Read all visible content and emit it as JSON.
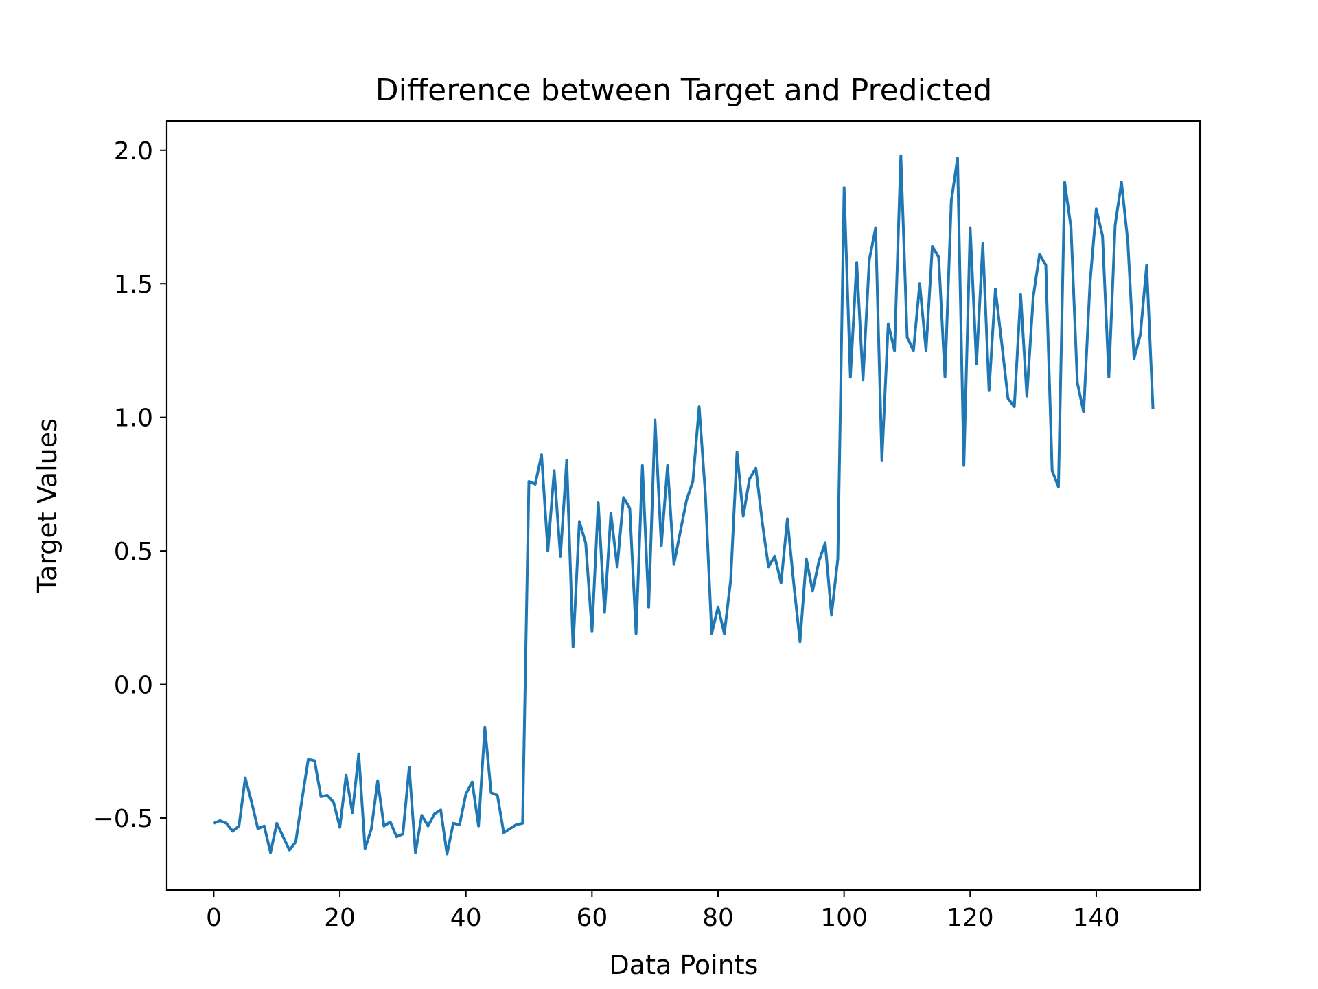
{
  "chart_data": {
    "type": "line",
    "title": "Difference between Target and Predicted",
    "xlabel": "Data Points",
    "ylabel": "Target Values",
    "xlim": [
      -7.45,
      156.45
    ],
    "ylim": [
      -0.77,
      2.11
    ],
    "xticks": [
      0,
      20,
      40,
      60,
      80,
      100,
      120,
      140
    ],
    "xtick_labels": [
      "0",
      "20",
      "40",
      "60",
      "80",
      "100",
      "120",
      "140"
    ],
    "yticks": [
      -0.5,
      0.0,
      0.5,
      1.0,
      1.5,
      2.0
    ],
    "ytick_labels": [
      "−0.5",
      "0.0",
      "0.5",
      "1.0",
      "1.5",
      "2.0"
    ],
    "grid": false,
    "series": [
      {
        "color": "#1f77b4",
        "x": [
          0,
          1,
          2,
          3,
          4,
          5,
          6,
          7,
          8,
          9,
          10,
          11,
          12,
          13,
          14,
          15,
          16,
          17,
          18,
          19,
          20,
          21,
          22,
          23,
          24,
          25,
          26,
          27,
          28,
          29,
          30,
          31,
          32,
          33,
          34,
          35,
          36,
          37,
          38,
          39,
          40,
          41,
          42,
          43,
          44,
          45,
          46,
          47,
          48,
          49,
          50,
          51,
          52,
          53,
          54,
          55,
          56,
          57,
          58,
          59,
          60,
          61,
          62,
          63,
          64,
          65,
          66,
          67,
          68,
          69,
          70,
          71,
          72,
          73,
          74,
          75,
          76,
          77,
          78,
          79,
          80,
          81,
          82,
          83,
          84,
          85,
          86,
          87,
          88,
          89,
          90,
          91,
          92,
          93,
          94,
          95,
          96,
          97,
          98,
          99,
          100,
          101,
          102,
          103,
          104,
          105,
          106,
          107,
          108,
          109,
          110,
          111,
          112,
          113,
          114,
          115,
          116,
          117,
          118,
          119,
          120,
          121,
          122,
          123,
          124,
          125,
          126,
          127,
          128,
          129,
          130,
          131,
          132,
          133,
          134,
          135,
          136,
          137,
          138,
          139,
          140,
          141,
          142,
          143,
          144,
          145,
          146,
          147,
          148,
          149
        ],
        "y": [
          -0.52,
          -0.51,
          -0.52,
          -0.55,
          -0.53,
          -0.35,
          -0.44,
          -0.54,
          -0.53,
          -0.63,
          -0.52,
          -0.57,
          -0.62,
          -0.59,
          -0.43,
          -0.28,
          -0.285,
          -0.42,
          -0.415,
          -0.44,
          -0.535,
          -0.34,
          -0.48,
          -0.26,
          -0.615,
          -0.54,
          -0.36,
          -0.53,
          -0.515,
          -0.57,
          -0.56,
          -0.31,
          -0.63,
          -0.49,
          -0.53,
          -0.485,
          -0.47,
          -0.635,
          -0.52,
          -0.525,
          -0.41,
          -0.365,
          -0.53,
          -0.16,
          -0.405,
          -0.415,
          -0.555,
          -0.54,
          -0.525,
          -0.52,
          0.76,
          0.75,
          0.86,
          0.5,
          0.8,
          0.48,
          0.84,
          0.14,
          0.61,
          0.53,
          0.2,
          0.68,
          0.27,
          0.64,
          0.44,
          0.7,
          0.66,
          0.19,
          0.82,
          0.29,
          0.99,
          0.52,
          0.82,
          0.45,
          0.57,
          0.69,
          0.76,
          1.04,
          0.71,
          0.19,
          0.29,
          0.19,
          0.39,
          0.87,
          0.63,
          0.77,
          0.81,
          0.61,
          0.44,
          0.48,
          0.38,
          0.62,
          0.38,
          0.16,
          0.47,
          0.35,
          0.46,
          0.53,
          0.26,
          0.47,
          1.86,
          1.15,
          1.58,
          1.14,
          1.59,
          1.71,
          0.84,
          1.35,
          1.25,
          1.98,
          1.3,
          1.25,
          1.5,
          1.25,
          1.64,
          1.6,
          1.15,
          1.81,
          1.97,
          0.82,
          1.71,
          1.2,
          1.65,
          1.1,
          1.48,
          1.28,
          1.07,
          1.04,
          1.46,
          1.08,
          1.45,
          1.61,
          1.57,
          0.8,
          0.74,
          1.88,
          1.71,
          1.13,
          1.02,
          1.5,
          1.78,
          1.68,
          1.15,
          1.72,
          1.88,
          1.66,
          1.22,
          1.31,
          1.57,
          1.03
        ]
      }
    ]
  }
}
